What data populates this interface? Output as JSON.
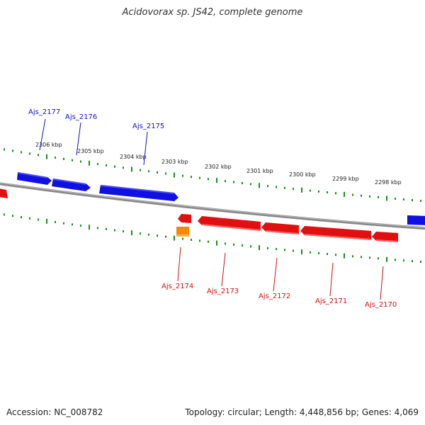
{
  "title": "Acidovorax sp. JS42, complete genome",
  "footer": {
    "accession": "Accession: NC_008782",
    "summary": "Topology: circular; Length: 4,448,856 bp; Genes: 4,069"
  },
  "colors": {
    "forward_gene": "#1010e0",
    "reverse_gene": "#e01010",
    "other_feature": "#f08c00",
    "tick": "#1a8a1a",
    "backbone": "#888888",
    "forward_label": "#1010c0",
    "reverse_label": "#d01010"
  },
  "scale_labels": [
    {
      "text": "2306 kbp",
      "kbp": 2306
    },
    {
      "text": "2305 kbp",
      "kbp": 2305
    },
    {
      "text": "2304 kbp",
      "kbp": 2304
    },
    {
      "text": "2303 kbp",
      "kbp": 2303
    },
    {
      "text": "2302 kbp",
      "kbp": 2302
    },
    {
      "text": "2301 kbp",
      "kbp": 2301
    },
    {
      "text": "2300 kbp",
      "kbp": 2300
    },
    {
      "text": "2299 kbp",
      "kbp": 2299
    },
    {
      "text": "2298 kbp",
      "kbp": 2298
    }
  ],
  "forward_genes": [
    {
      "label": "Ajs_2177"
    },
    {
      "label": "Ajs_2176"
    },
    {
      "label": "Ajs_2175"
    }
  ],
  "reverse_genes": [
    {
      "label": "Ajs_2174"
    },
    {
      "label": "Ajs_2173"
    },
    {
      "label": "Ajs_2172"
    },
    {
      "label": "Ajs_2171"
    },
    {
      "label": "Ajs_2170"
    }
  ]
}
